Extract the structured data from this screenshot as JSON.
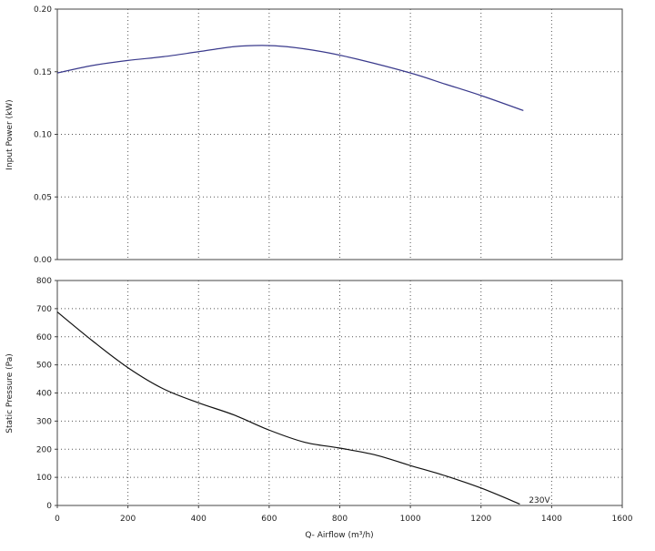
{
  "chart_data": [
    {
      "type": "line",
      "ylabel": "Input Power (kW)",
      "xlim": [
        0,
        1600
      ],
      "ylim": [
        0,
        0.2
      ],
      "xticks": [
        0,
        200,
        400,
        600,
        800,
        1000,
        1200,
        1400,
        1600
      ],
      "yticks": [
        "0.00",
        "0.05",
        "0.10",
        "0.15",
        "0.20"
      ],
      "grid": true,
      "series": [
        {
          "color": "#3a3a8c",
          "x": [
            0,
            100,
            200,
            300,
            400,
            500,
            580,
            650,
            750,
            850,
            1000,
            1100,
            1200,
            1320
          ],
          "y": [
            0.149,
            0.155,
            0.159,
            0.162,
            0.166,
            0.17,
            0.171,
            0.17,
            0.166,
            0.16,
            0.149,
            0.14,
            0.131,
            0.119
          ]
        }
      ]
    },
    {
      "type": "line",
      "xlabel": "Q- Airflow (m³/h)",
      "ylabel": "Static Pressure (Pa)",
      "xlim": [
        0,
        1600
      ],
      "ylim": [
        0,
        800
      ],
      "xticks": [
        0,
        200,
        400,
        600,
        800,
        1000,
        1200,
        1400,
        1600
      ],
      "yticks": [
        "0",
        "100",
        "200",
        "300",
        "400",
        "500",
        "600",
        "700",
        "800"
      ],
      "grid": true,
      "annotations": [
        {
          "text": "230V",
          "x": 1320,
          "y": 0
        }
      ],
      "series": [
        {
          "color": "#111111",
          "x": [
            0,
            100,
            200,
            300,
            400,
            500,
            600,
            700,
            800,
            900,
            1000,
            1100,
            1200,
            1310
          ],
          "y": [
            688,
            585,
            490,
            415,
            365,
            322,
            268,
            225,
            204,
            180,
            142,
            105,
            62,
            5
          ]
        }
      ]
    }
  ]
}
